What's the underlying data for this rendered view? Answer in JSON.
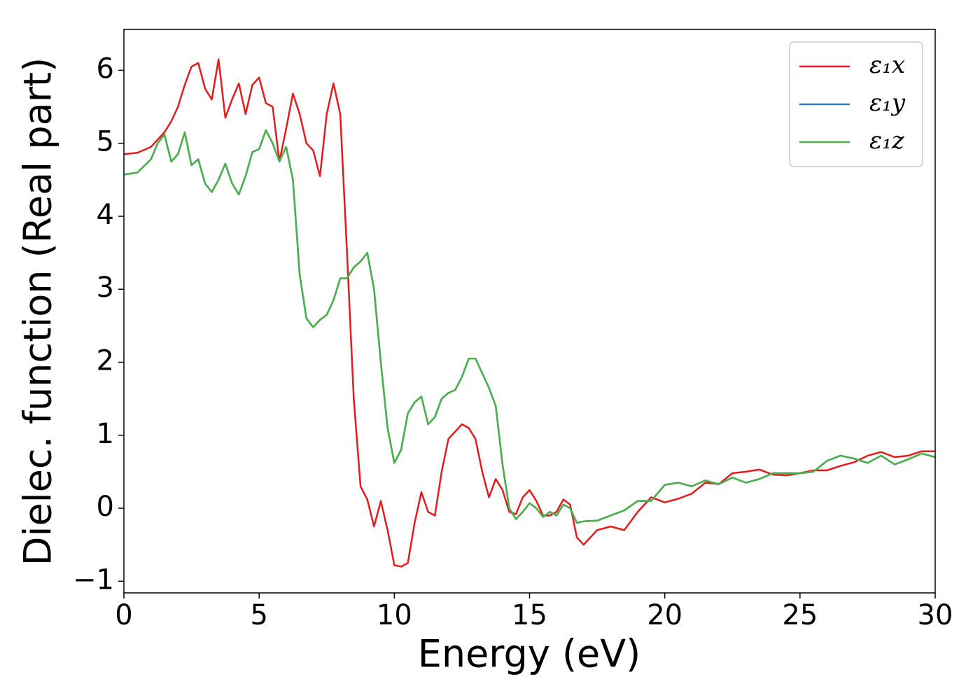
{
  "chart_data": {
    "type": "line",
    "x_label": "Energy (eV)",
    "y_label": "Dielec. function (Real part)",
    "x": [
      0,
      0.5,
      1,
      1.25,
      1.5,
      1.75,
      2,
      2.25,
      2.5,
      2.75,
      3,
      3.25,
      3.5,
      3.75,
      4,
      4.25,
      4.5,
      4.75,
      5,
      5.25,
      5.5,
      5.75,
      6,
      6.25,
      6.5,
      6.75,
      7,
      7.25,
      7.5,
      7.75,
      8,
      8.25,
      8.5,
      8.75,
      9,
      9.25,
      9.5,
      9.75,
      10,
      10.25,
      10.5,
      10.75,
      11,
      11.25,
      11.5,
      11.75,
      12,
      12.25,
      12.5,
      12.75,
      13,
      13.25,
      13.5,
      13.75,
      14,
      14.25,
      14.5,
      14.75,
      15,
      15.25,
      15.5,
      15.75,
      16,
      16.25,
      16.5,
      16.75,
      17,
      17.5,
      18,
      18.5,
      19,
      19.5,
      20,
      20.5,
      21,
      21.5,
      22,
      22.5,
      23,
      23.5,
      24,
      24.5,
      25,
      25.5,
      26,
      26.5,
      27,
      27.5,
      28,
      28.5,
      29,
      29.5,
      30
    ],
    "series": [
      {
        "name": "ε₁x",
        "color": "#e41a1c",
        "values": [
          4.85,
          4.87,
          4.95,
          5.05,
          5.15,
          5.3,
          5.5,
          5.8,
          6.05,
          6.1,
          5.75,
          5.6,
          6.15,
          5.35,
          5.6,
          5.82,
          5.4,
          5.8,
          5.9,
          5.55,
          5.5,
          4.75,
          5.2,
          5.68,
          5.4,
          5.0,
          4.9,
          4.55,
          5.4,
          5.82,
          5.4,
          3.5,
          1.5,
          0.3,
          0.12,
          -0.25,
          0.1,
          -0.3,
          -0.78,
          -0.8,
          -0.75,
          -0.2,
          0.22,
          -0.05,
          -0.1,
          0.5,
          0.95,
          1.05,
          1.15,
          1.1,
          0.95,
          0.5,
          0.15,
          0.4,
          0.25,
          -0.05,
          -0.08,
          0.15,
          0.25,
          0.1,
          -0.1,
          -0.1,
          -0.05,
          0.12,
          0.05,
          -0.4,
          -0.5,
          -0.3,
          -0.25,
          -0.3,
          -0.05,
          0.15,
          0.08,
          0.13,
          0.2,
          0.35,
          0.33,
          0.48,
          0.5,
          0.53,
          0.46,
          0.45,
          0.48,
          0.52,
          0.52,
          0.58,
          0.63,
          0.72,
          0.77,
          0.7,
          0.72,
          0.78,
          0.78
        ]
      },
      {
        "name": "ε₁y",
        "color": "#377eb8",
        "values": [
          4.57,
          4.6,
          4.78,
          5.0,
          5.12,
          4.75,
          4.85,
          5.15,
          4.7,
          4.78,
          4.45,
          4.33,
          4.5,
          4.72,
          4.45,
          4.3,
          4.55,
          4.88,
          4.92,
          5.18,
          5.0,
          4.75,
          4.95,
          4.5,
          3.2,
          2.6,
          2.48,
          2.58,
          2.65,
          2.85,
          3.15,
          3.15,
          3.3,
          3.38,
          3.5,
          3.0,
          2.0,
          1.1,
          0.62,
          0.8,
          1.3,
          1.45,
          1.53,
          1.15,
          1.25,
          1.5,
          1.58,
          1.62,
          1.8,
          2.05,
          2.05,
          1.85,
          1.65,
          1.4,
          0.6,
          0.0,
          -0.15,
          -0.05,
          0.07,
          0.0,
          -0.12,
          -0.05,
          -0.1,
          0.05,
          0.0,
          -0.2,
          -0.18,
          -0.17,
          -0.1,
          -0.03,
          0.1,
          0.1,
          0.32,
          0.35,
          0.3,
          0.38,
          0.33,
          0.42,
          0.35,
          0.4,
          0.48,
          0.48,
          0.48,
          0.5,
          0.65,
          0.72,
          0.68,
          0.62,
          0.72,
          0.6,
          0.67,
          0.75,
          0.7
        ]
      },
      {
        "name": "ε₁z",
        "color": "#4daf4a",
        "values": [
          4.57,
          4.6,
          4.78,
          5.0,
          5.12,
          4.75,
          4.85,
          5.15,
          4.7,
          4.78,
          4.45,
          4.33,
          4.5,
          4.72,
          4.45,
          4.3,
          4.55,
          4.88,
          4.92,
          5.18,
          5.0,
          4.75,
          4.95,
          4.5,
          3.2,
          2.6,
          2.48,
          2.58,
          2.65,
          2.85,
          3.15,
          3.15,
          3.3,
          3.38,
          3.5,
          3.0,
          2.0,
          1.1,
          0.62,
          0.8,
          1.3,
          1.45,
          1.53,
          1.15,
          1.25,
          1.5,
          1.58,
          1.62,
          1.8,
          2.05,
          2.05,
          1.85,
          1.65,
          1.4,
          0.6,
          0.0,
          -0.15,
          -0.05,
          0.07,
          0.0,
          -0.12,
          -0.05,
          -0.1,
          0.05,
          0.0,
          -0.2,
          -0.18,
          -0.17,
          -0.1,
          -0.03,
          0.1,
          0.1,
          0.32,
          0.35,
          0.3,
          0.38,
          0.33,
          0.42,
          0.35,
          0.4,
          0.48,
          0.48,
          0.48,
          0.5,
          0.65,
          0.72,
          0.68,
          0.62,
          0.72,
          0.6,
          0.67,
          0.75,
          0.7
        ]
      }
    ],
    "xlim": [
      0,
      30
    ],
    "xticks": [
      0,
      5,
      10,
      15,
      20,
      25,
      30
    ],
    "ylim": [
      -1.16,
      6.56
    ],
    "yticks": [
      {
        "value": -1,
        "label": "−1"
      },
      0,
      1,
      2,
      3,
      4,
      5,
      6
    ],
    "grid": false,
    "legend": "upper right"
  }
}
